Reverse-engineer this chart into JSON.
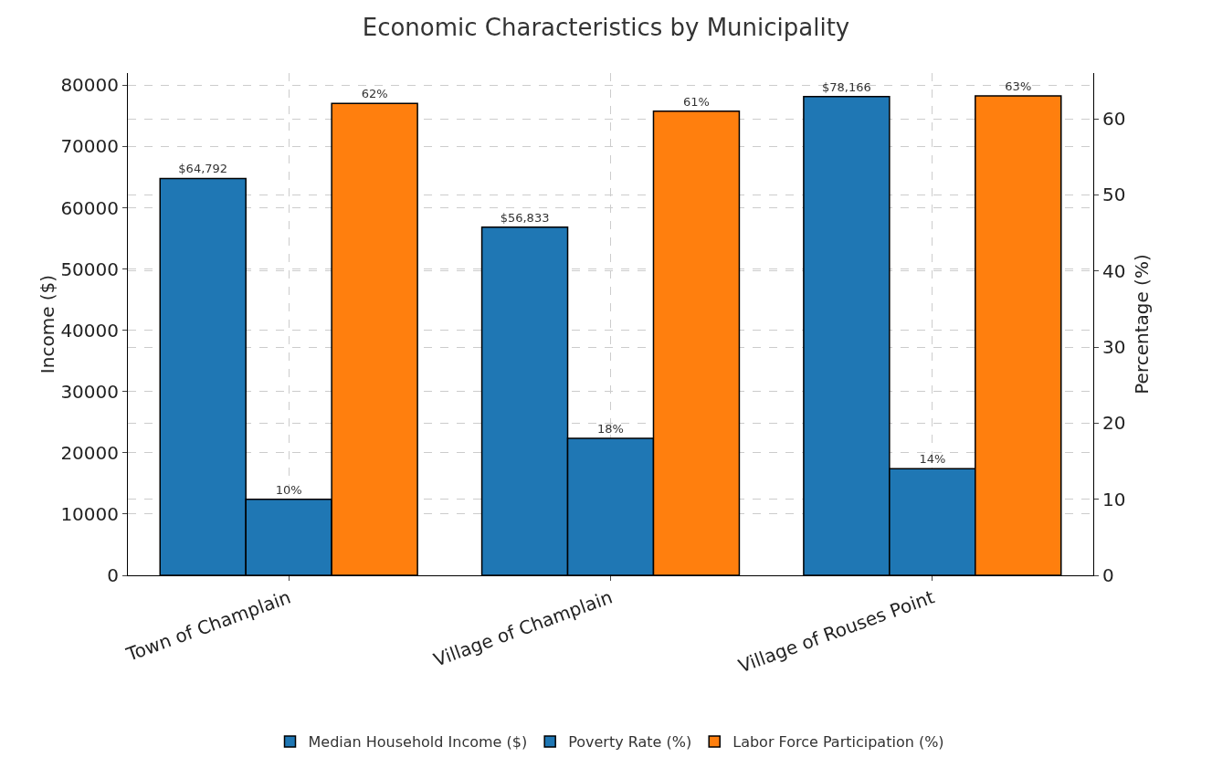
{
  "chart_data": {
    "type": "bar",
    "title": "Economic Characteristics by Municipality",
    "categories": [
      "Town of Champlain",
      "Village of Champlain",
      "Village of Rouses Point"
    ],
    "series": [
      {
        "name": "Median Household Income ($)",
        "color": "#1f77b4",
        "values": [
          64792,
          56833,
          78166
        ],
        "value_labels": [
          "$64,792",
          "$56,833",
          "$78,166"
        ]
      },
      {
        "name": "Poverty Rate (%)",
        "color": "#1f77b4",
        "axis": "y2",
        "values": [
          10,
          18,
          14
        ],
        "value_labels": [
          "10%",
          "18%",
          "14%"
        ]
      },
      {
        "name": "Labor Force Participation (%)",
        "color": "#ff7f0e",
        "axis": "y2",
        "values": [
          62,
          61,
          63
        ],
        "value_labels": [
          "62%",
          "61%",
          "63%"
        ]
      }
    ],
    "ylabel": "Income ($)",
    "y2label": "Percentage (%)",
    "ylim": [
      0,
      82000
    ],
    "yticks": [
      0,
      10000,
      20000,
      30000,
      40000,
      50000,
      60000,
      70000,
      80000
    ],
    "y2lim": [
      0,
      66
    ],
    "y2ticks": [
      0,
      10,
      20,
      30,
      40,
      50,
      60
    ],
    "grid": true,
    "legend": "bottom"
  }
}
